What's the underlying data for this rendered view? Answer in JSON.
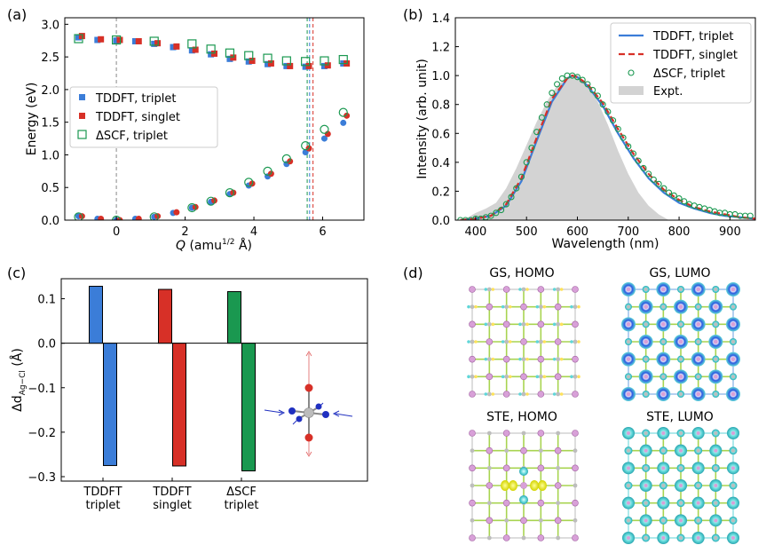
{
  "panel_labels": [
    "(a)",
    "(b)",
    "(c)",
    "(d)"
  ],
  "chart_data": [
    {
      "type": "scatter",
      "panel": "(a)",
      "xlabel": "Q (amu¹ᐟ² Å)",
      "xlabel_parts": {
        "q": "Q",
        "unit_pre": " (amu",
        "sup": "1/2",
        "unit_post": " Å)"
      },
      "ylabel": "Energy (eV)",
      "xlim": [
        -1.5,
        7.2
      ],
      "ylim": [
        0,
        3.1
      ],
      "xticks": [
        0,
        2,
        4,
        6
      ],
      "yticks": [
        0.0,
        0.5,
        1.0,
        1.5,
        2.0,
        2.5,
        3.0
      ],
      "xtick_labels": [
        "0",
        "2",
        "4",
        "6"
      ],
      "ytick_labels": [
        "0.0",
        "0.5",
        "1.0",
        "1.5",
        "2.0",
        "2.5",
        "3.0"
      ],
      "vlines": [
        {
          "x": 0.0,
          "color": "#888888",
          "style": "dashed"
        },
        {
          "x": 5.55,
          "color": "#1a9850",
          "style": "dashed"
        },
        {
          "x": 5.62,
          "color": "#3b7dd8",
          "style": "dashed"
        },
        {
          "x": 5.72,
          "color": "#d73027",
          "style": "dashed"
        }
      ],
      "legend": {
        "position": "center-left",
        "entries": [
          "TDDFT, triplet",
          "TDDFT, singlet",
          "ΔSCF, triplet"
        ]
      },
      "series": [
        {
          "name": "TDDFT, triplet",
          "color": "#3b7dd8",
          "marker": "square-filled",
          "x": [
            -1.1,
            -0.55,
            0,
            0.55,
            1.1,
            1.65,
            2.2,
            2.75,
            3.3,
            3.85,
            4.4,
            4.95,
            5.5,
            6.05,
            6.6
          ],
          "y": [
            2.8,
            2.76,
            2.75,
            2.74,
            2.7,
            2.65,
            2.6,
            2.54,
            2.47,
            2.43,
            2.39,
            2.36,
            2.35,
            2.36,
            2.4
          ]
        },
        {
          "name": "TDDFT, triplet (GS)",
          "color": "#3b7dd8",
          "marker": "circle-filled",
          "x": [
            -1.1,
            -0.55,
            0,
            0.55,
            1.1,
            1.65,
            2.2,
            2.75,
            3.3,
            3.85,
            4.4,
            4.95,
            5.5,
            6.05,
            6.6
          ],
          "y": [
            0.06,
            0.02,
            0.0,
            0.02,
            0.05,
            0.11,
            0.19,
            0.28,
            0.4,
            0.53,
            0.67,
            0.86,
            1.04,
            1.25,
            1.49
          ]
        },
        {
          "name": "TDDFT, singlet",
          "color": "#d73027",
          "marker": "square-filled",
          "x": [
            -1.0,
            -0.45,
            0.1,
            0.65,
            1.2,
            1.75,
            2.3,
            2.85,
            3.4,
            3.95,
            4.5,
            5.05,
            5.6,
            6.15,
            6.7
          ],
          "y": [
            2.82,
            2.77,
            2.76,
            2.74,
            2.71,
            2.66,
            2.61,
            2.55,
            2.49,
            2.44,
            2.4,
            2.36,
            2.36,
            2.37,
            2.4
          ]
        },
        {
          "name": "TDDFT, singlet (GS)",
          "color": "#d73027",
          "marker": "circle-filled",
          "x": [
            -1.0,
            -0.45,
            0.1,
            0.65,
            1.2,
            1.75,
            2.3,
            2.85,
            3.4,
            3.95,
            4.5,
            5.05,
            5.6,
            6.15,
            6.7
          ],
          "y": [
            0.06,
            0.02,
            0.0,
            0.02,
            0.06,
            0.12,
            0.2,
            0.3,
            0.42,
            0.56,
            0.71,
            0.9,
            1.1,
            1.32,
            1.6
          ]
        },
        {
          "name": "ΔSCF, triplet",
          "color": "#1a9850",
          "marker": "square-open",
          "x": [
            -1.1,
            0.0,
            1.1,
            2.2,
            2.75,
            3.3,
            3.85,
            4.4,
            4.95,
            5.5,
            6.05,
            6.6
          ],
          "y": [
            2.78,
            2.76,
            2.74,
            2.7,
            2.62,
            2.56,
            2.52,
            2.48,
            2.44,
            2.43,
            2.44,
            2.46
          ]
        },
        {
          "name": "ΔSCF, triplet (GS)",
          "color": "#1a9850",
          "marker": "circle-open",
          "x": [
            -1.1,
            0.0,
            1.1,
            2.2,
            2.75,
            3.3,
            3.85,
            4.4,
            4.95,
            5.5,
            6.05,
            6.6
          ],
          "y": [
            0.05,
            0.0,
            0.05,
            0.19,
            0.29,
            0.42,
            0.58,
            0.75,
            0.94,
            1.14,
            1.39,
            1.65
          ]
        }
      ]
    },
    {
      "type": "line",
      "panel": "(b)",
      "xlabel": "Wavelength (nm)",
      "ylabel": "Intensity (arb. unit)",
      "xlim": [
        360,
        950
      ],
      "ylim": [
        0,
        1.4
      ],
      "xticks": [
        400,
        500,
        600,
        700,
        800,
        900
      ],
      "yticks": [
        0.0,
        0.2,
        0.4,
        0.6,
        0.8,
        1.0,
        1.2,
        1.4
      ],
      "xtick_labels": [
        "400",
        "500",
        "600",
        "700",
        "800",
        "900"
      ],
      "ytick_labels": [
        "0.0",
        "0.2",
        "0.4",
        "0.6",
        "0.8",
        "1.0",
        "1.2",
        "1.4"
      ],
      "legend": {
        "position": "top-right",
        "entries": [
          "TDDFT, triplet",
          "TDDFT, singlet",
          "ΔSCF, triplet",
          "Expt."
        ]
      },
      "series": [
        {
          "name": "TDDFT, triplet",
          "color": "#3b7dd8",
          "style": "solid",
          "x": [
            370,
            400,
            430,
            460,
            490,
            520,
            550,
            580,
            590,
            600,
            620,
            650,
            680,
            710,
            740,
            770,
            800,
            830,
            860,
            890,
            920,
            950
          ],
          "y": [
            0.0,
            0.01,
            0.03,
            0.1,
            0.27,
            0.55,
            0.82,
            0.98,
            1.0,
            0.99,
            0.93,
            0.79,
            0.6,
            0.43,
            0.29,
            0.19,
            0.12,
            0.08,
            0.05,
            0.03,
            0.02,
            0.01
          ]
        },
        {
          "name": "TDDFT, singlet",
          "color": "#d73027",
          "style": "dashed",
          "x": [
            370,
            400,
            430,
            460,
            490,
            520,
            550,
            580,
            590,
            600,
            620,
            650,
            680,
            710,
            740,
            770,
            800,
            830,
            860,
            890,
            920,
            950
          ],
          "y": [
            0.0,
            0.01,
            0.03,
            0.11,
            0.29,
            0.57,
            0.84,
            0.98,
            1.0,
            0.99,
            0.94,
            0.81,
            0.63,
            0.46,
            0.32,
            0.21,
            0.14,
            0.09,
            0.06,
            0.04,
            0.02,
            0.01
          ]
        },
        {
          "name": "ΔSCF, triplet",
          "color": "#1a9850",
          "style": "open-circles",
          "x": [
            370,
            380,
            390,
            400,
            410,
            420,
            430,
            440,
            450,
            460,
            470,
            480,
            490,
            500,
            510,
            520,
            530,
            540,
            550,
            560,
            570,
            580,
            590,
            600,
            610,
            620,
            630,
            640,
            650,
            660,
            670,
            680,
            690,
            700,
            710,
            720,
            730,
            740,
            750,
            760,
            770,
            780,
            790,
            800,
            810,
            820,
            830,
            840,
            850,
            860,
            870,
            880,
            890,
            900,
            910,
            920,
            930,
            940
          ],
          "y": [
            0.0,
            0.0,
            0.0,
            0.01,
            0.01,
            0.02,
            0.03,
            0.05,
            0.07,
            0.11,
            0.16,
            0.22,
            0.3,
            0.4,
            0.5,
            0.61,
            0.71,
            0.8,
            0.88,
            0.94,
            0.98,
            1.0,
            1.0,
            0.99,
            0.97,
            0.94,
            0.9,
            0.86,
            0.8,
            0.75,
            0.69,
            0.63,
            0.57,
            0.51,
            0.46,
            0.41,
            0.36,
            0.32,
            0.28,
            0.25,
            0.22,
            0.19,
            0.17,
            0.15,
            0.13,
            0.11,
            0.1,
            0.09,
            0.08,
            0.07,
            0.06,
            0.05,
            0.05,
            0.04,
            0.04,
            0.03,
            0.03,
            0.03
          ]
        },
        {
          "name": "Expt.",
          "color": "#d3d3d3",
          "style": "filled-area",
          "x": [
            375,
            400,
            420,
            440,
            460,
            480,
            500,
            520,
            540,
            560,
            580,
            590,
            600,
            620,
            640,
            660,
            680,
            700,
            720,
            740,
            760,
            780
          ],
          "y": [
            0.0,
            0.05,
            0.08,
            0.12,
            0.22,
            0.36,
            0.52,
            0.68,
            0.82,
            0.93,
            0.99,
            1.0,
            0.99,
            0.93,
            0.82,
            0.66,
            0.48,
            0.32,
            0.19,
            0.1,
            0.04,
            0.0
          ]
        }
      ]
    },
    {
      "type": "bar",
      "panel": "(c)",
      "ylabel": "Δd Ag−Cl (Å)",
      "ylabel_parts": {
        "main": "Δd",
        "sub": "Ag−Cl",
        "unit": " (Å)"
      },
      "ylim": [
        -0.31,
        0.145
      ],
      "yticks": [
        -0.3,
        -0.2,
        -0.1,
        0.0,
        0.1
      ],
      "ytick_labels": [
        "−0.3",
        "−0.2",
        "−0.1",
        "0.0",
        "0.1"
      ],
      "categories": [
        {
          "line1": "TDDFT",
          "line2": "triplet",
          "color": "#3b7dd8",
          "values": [
            0.128,
            -0.275
          ]
        },
        {
          "line1": "TDDFT",
          "line2": "singlet",
          "color": "#d73027",
          "values": [
            0.121,
            -0.276
          ]
        },
        {
          "line1": "ΔSCF",
          "line2": "triplet",
          "color": "#1a9850",
          "values": [
            0.116,
            -0.287
          ]
        }
      ],
      "inset": "AgCl6 octahedron distortion schematic"
    },
    {
      "type": "heatmap",
      "panel": "(d)",
      "titles": [
        "GS, HOMO",
        "GS, LUMO",
        "STE, HOMO",
        "STE, LUMO"
      ]
    }
  ]
}
